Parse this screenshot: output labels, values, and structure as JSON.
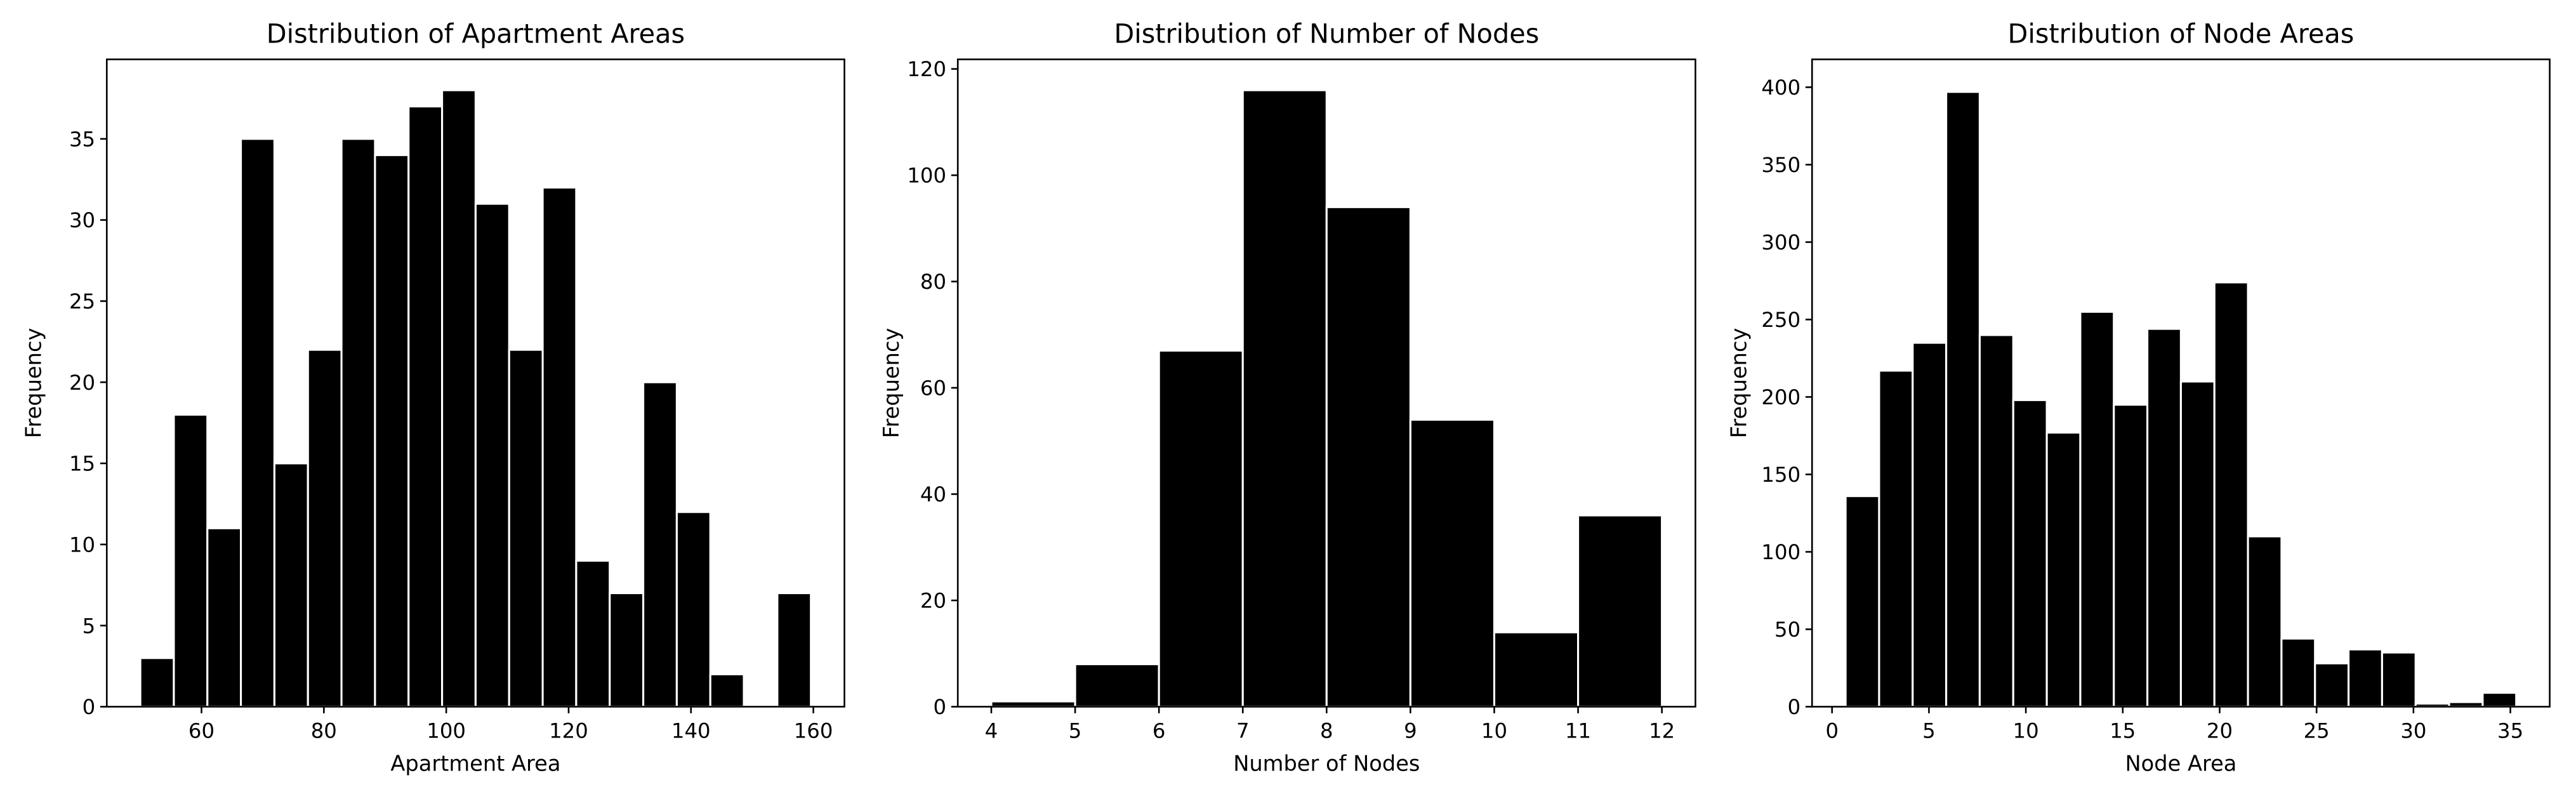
{
  "chart_data": [
    {
      "type": "histogram",
      "title": "Distribution of Apartment Areas",
      "xlabel": "Apartment Area",
      "ylabel": "Frequency",
      "color": "#000000",
      "edgecolor": "#ffffff",
      "bins": [
        50,
        55.48,
        60.96,
        66.44,
        71.92,
        77.4,
        82.88,
        88.36,
        93.84,
        99.32,
        104.8,
        110.28,
        115.76,
        121.24,
        126.72,
        132.2,
        137.68,
        143.16,
        148.64,
        154.12,
        159.6
      ],
      "values": [
        3,
        18,
        11,
        35,
        15,
        22,
        35,
        34,
        37,
        38,
        31,
        22,
        32,
        9,
        7,
        20,
        12,
        2,
        0,
        7
      ],
      "xlim": [
        44.52,
        165.08
      ],
      "xticks": [
        60,
        80,
        100,
        120,
        140,
        160
      ],
      "ylim": [
        0,
        39.9
      ],
      "yticks": [
        0,
        5,
        10,
        15,
        20,
        25,
        30,
        35
      ]
    },
    {
      "type": "histogram",
      "title": "Distribution of Number of Nodes",
      "xlabel": "Number of Nodes",
      "ylabel": "Frequency",
      "color": "#000000",
      "edgecolor": "#ffffff",
      "bins": [
        4,
        5,
        6,
        7,
        8,
        9,
        10,
        11,
        12
      ],
      "values": [
        1,
        8,
        67,
        116,
        94,
        54,
        14,
        36
      ],
      "xlim": [
        3.6,
        12.4
      ],
      "xticks": [
        4,
        5,
        6,
        7,
        8,
        9,
        10,
        11,
        12
      ],
      "ylim": [
        0,
        121.8
      ],
      "yticks": [
        0,
        20,
        40,
        60,
        80,
        100,
        120
      ]
    },
    {
      "type": "histogram",
      "title": "Distribution of Node Areas",
      "xlabel": "Node Area",
      "ylabel": "Frequency",
      "color": "#000000",
      "edgecolor": "#ffffff",
      "bins": [
        0.7,
        2.43,
        4.16,
        5.89,
        7.62,
        9.35,
        11.08,
        12.81,
        14.54,
        16.27,
        18.0,
        19.73,
        21.46,
        23.19,
        24.92,
        26.65,
        28.38,
        30.11,
        31.84,
        33.57,
        35.3
      ],
      "values": [
        136,
        217,
        235,
        397,
        240,
        198,
        177,
        255,
        195,
        244,
        210,
        274,
        110,
        44,
        28,
        37,
        35,
        2,
        3,
        9
      ],
      "xlim": [
        -1.03,
        37.03
      ],
      "xticks": [
        0,
        5,
        10,
        15,
        20,
        25,
        30,
        35
      ],
      "ylim": [
        0,
        418
      ],
      "yticks": [
        0,
        50,
        100,
        150,
        200,
        250,
        300,
        350,
        400
      ]
    }
  ]
}
